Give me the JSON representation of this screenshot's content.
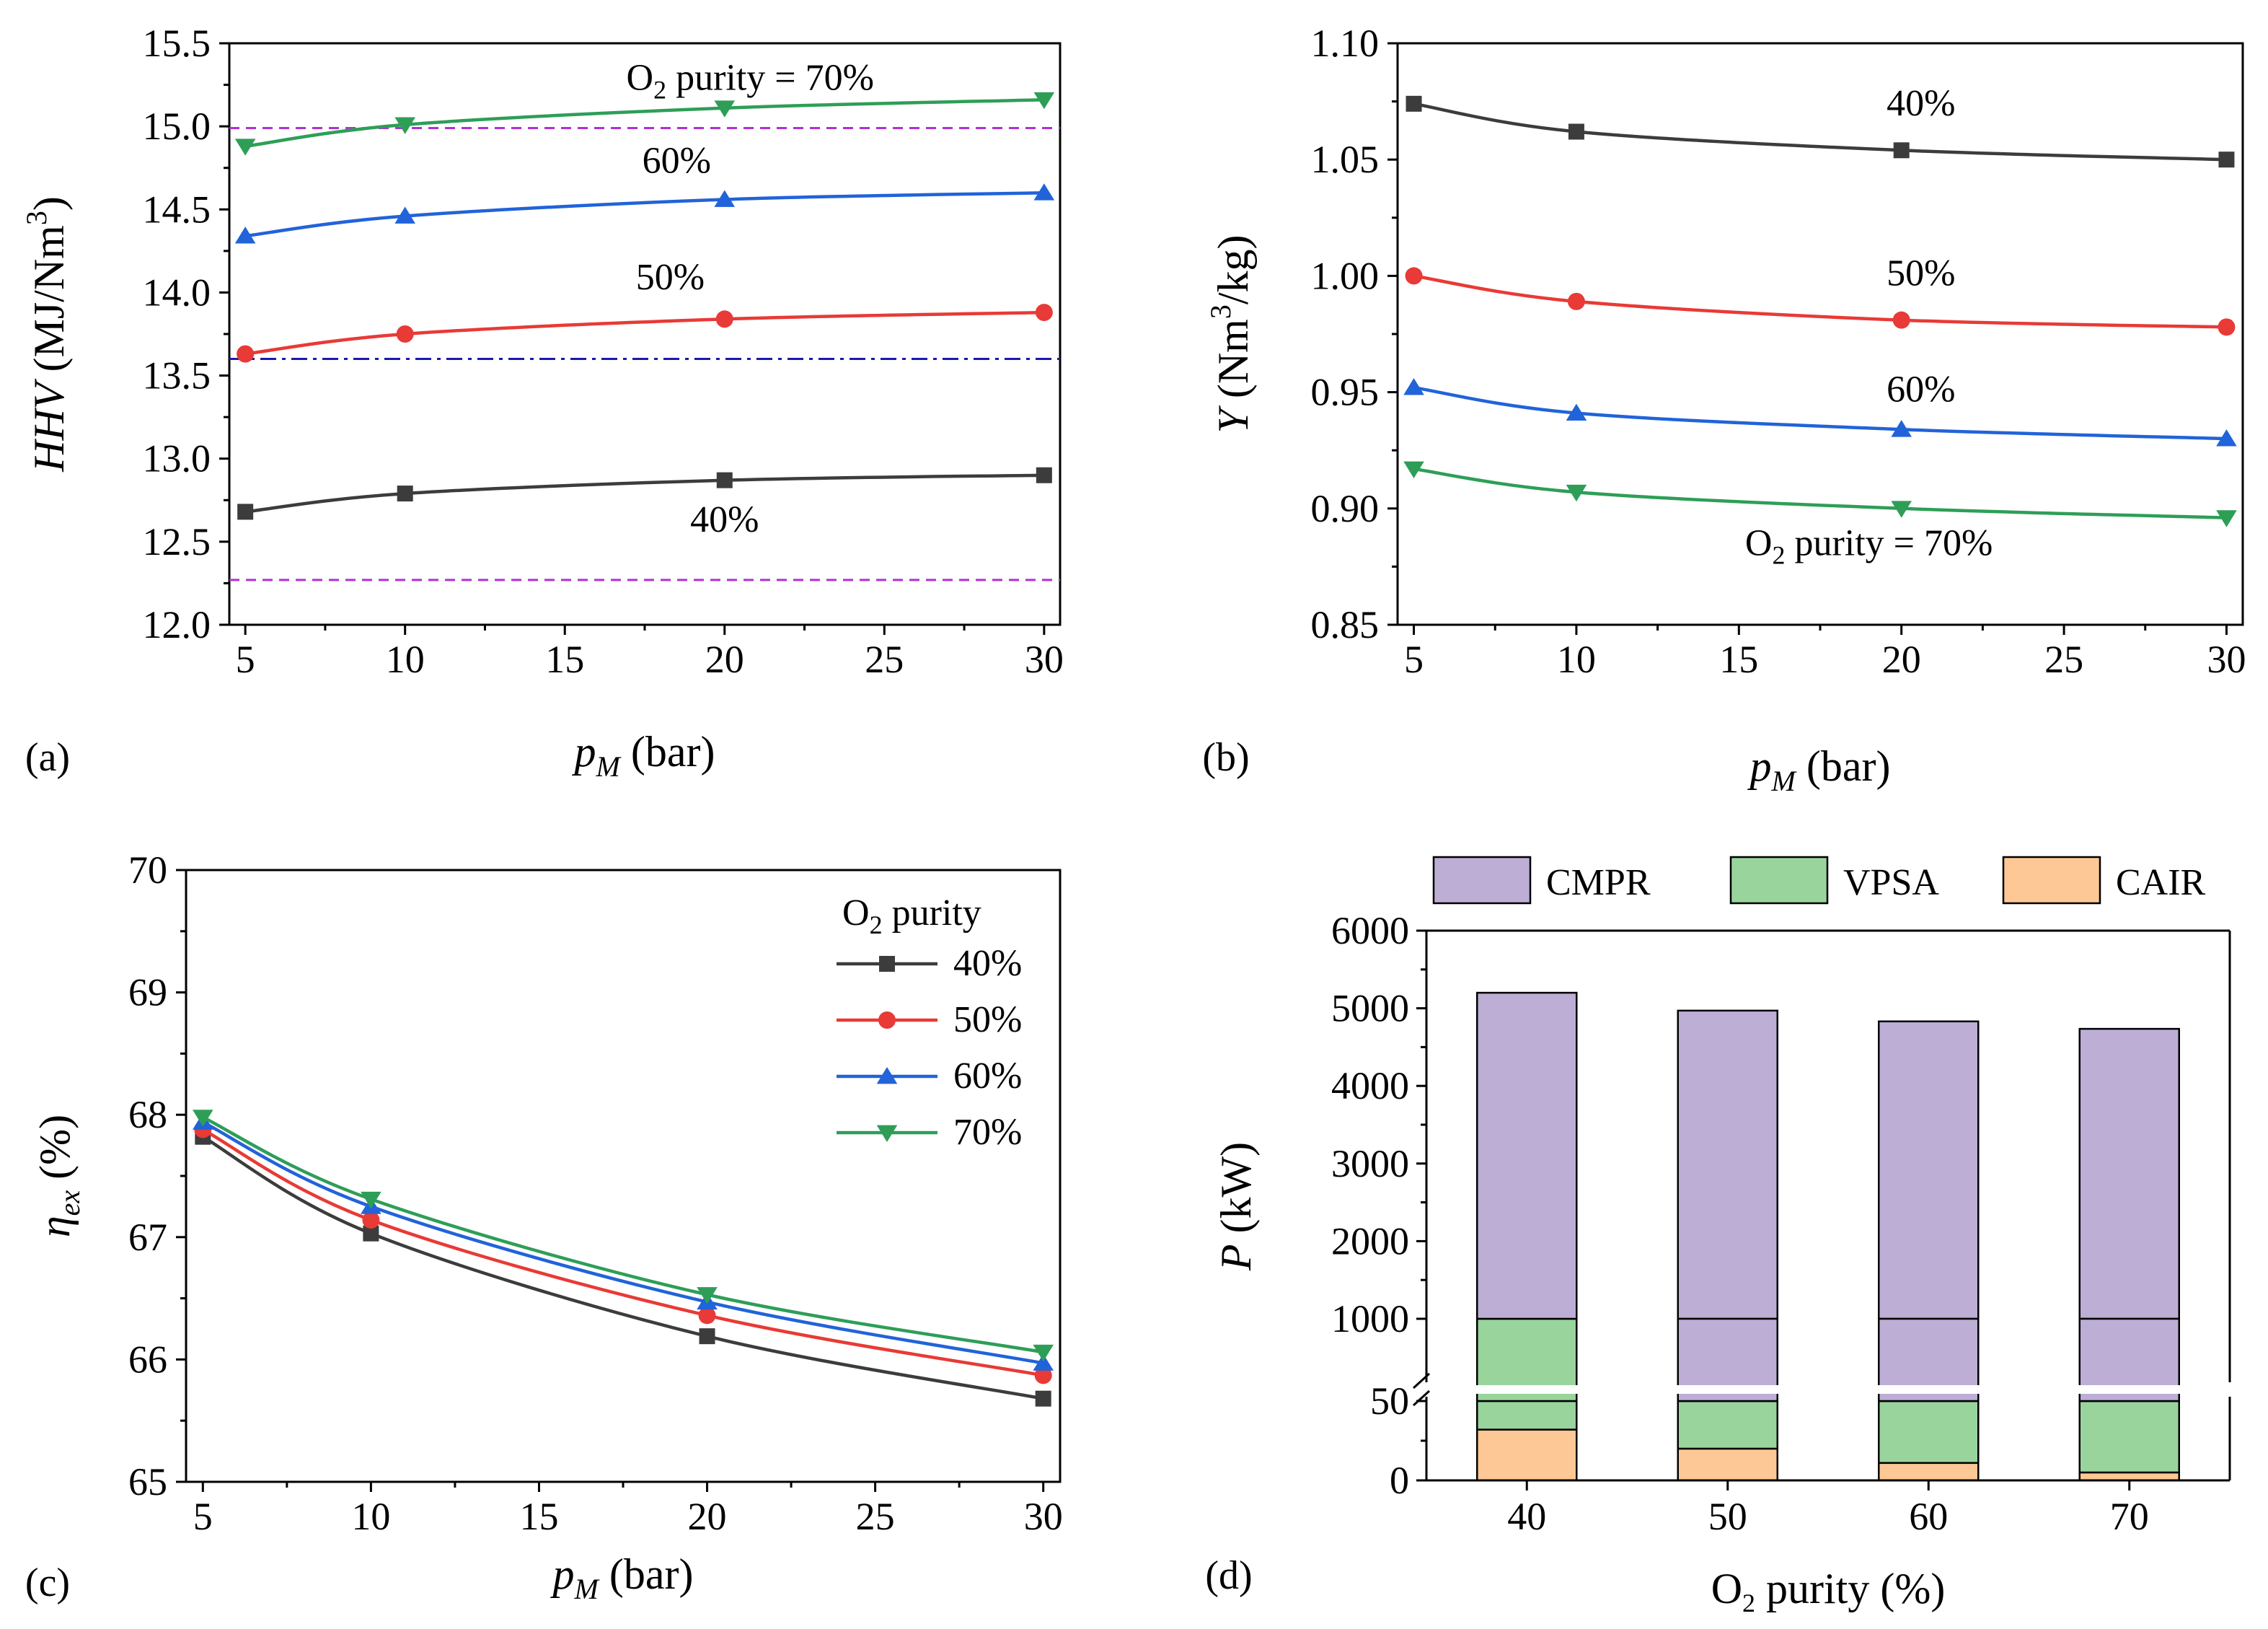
{
  "chart_data": [
    {
      "panel": "(a)",
      "type": "line",
      "xlabel": "p_M (bar)",
      "ylabel": "HHV (MJ/Nm3)",
      "xlim": [
        4.5,
        30.5
      ],
      "ylim": [
        12.0,
        15.5
      ],
      "xticks": [
        5,
        10,
        15,
        20,
        25,
        30
      ],
      "yticks": [
        12.0,
        12.5,
        13.0,
        13.5,
        14.0,
        14.5,
        15.0,
        15.5
      ],
      "x": [
        5,
        10,
        20,
        30
      ],
      "series": [
        {
          "name": "40%",
          "values": [
            12.68,
            12.79,
            12.87,
            12.9
          ],
          "color": "#3c3c3c",
          "marker": "square",
          "label": "40%",
          "label_at": [
            20.0,
            12.56
          ]
        },
        {
          "name": "50%",
          "values": [
            13.63,
            13.75,
            13.84,
            13.88
          ],
          "color": "#e83a36",
          "marker": "circle",
          "label": "50%",
          "label_at": [
            18.3,
            14.02
          ]
        },
        {
          "name": "60%",
          "values": [
            14.34,
            14.46,
            14.56,
            14.6
          ],
          "color": "#2163d9",
          "marker": "triangle-up",
          "label": "60%",
          "label_at": [
            18.5,
            14.72
          ]
        },
        {
          "name": "70%",
          "values": [
            14.88,
            15.01,
            15.11,
            15.16
          ],
          "color": "#2e9e57",
          "marker": "triangle-down",
          "label": "O2 purity = 70%",
          "label_at": [
            20.8,
            15.22
          ]
        }
      ],
      "reference_lines": [
        {
          "y": 14.99,
          "color": "#b030d8",
          "style": "dashed"
        },
        {
          "y": 13.6,
          "color": "#1a1ab0",
          "style": "dashdot"
        },
        {
          "y": 12.27,
          "color": "#b030d8",
          "style": "dashed"
        }
      ],
      "panel_label": "(a)"
    },
    {
      "panel": "(b)",
      "type": "line",
      "xlabel": "p_M (bar)",
      "ylabel": "Y (Nm3/kg)",
      "xlim": [
        4.5,
        30.5
      ],
      "ylim": [
        0.85,
        1.1
      ],
      "xticks": [
        5,
        10,
        15,
        20,
        25,
        30
      ],
      "yticks": [
        0.85,
        0.9,
        0.95,
        1.0,
        1.05,
        1.1
      ],
      "x": [
        5,
        10,
        20,
        30
      ],
      "series": [
        {
          "name": "40%",
          "values": [
            1.074,
            1.062,
            1.054,
            1.05
          ],
          "color": "#3c3c3c",
          "marker": "square",
          "label": "40%",
          "label_at": [
            20.6,
            1.069
          ]
        },
        {
          "name": "50%",
          "values": [
            1.0,
            0.989,
            0.981,
            0.978
          ],
          "color": "#e83a36",
          "marker": "circle",
          "label": "50%",
          "label_at": [
            20.6,
            0.996
          ]
        },
        {
          "name": "60%",
          "values": [
            0.952,
            0.941,
            0.934,
            0.93
          ],
          "color": "#2163d9",
          "marker": "triangle-up",
          "label": "60%",
          "label_at": [
            20.6,
            0.946
          ]
        },
        {
          "name": "70%",
          "values": [
            0.917,
            0.907,
            0.9,
            0.896
          ],
          "color": "#2e9e57",
          "marker": "triangle-down",
          "label": "O2 purity = 70%",
          "label_at": [
            19.0,
            0.88
          ]
        }
      ],
      "panel_label": "(b)"
    },
    {
      "panel": "(c)",
      "type": "line",
      "xlabel": "p_M (bar)",
      "ylabel": "η_ex (%)",
      "xlim": [
        4.5,
        30.5
      ],
      "ylim": [
        65,
        70
      ],
      "xticks": [
        5,
        10,
        15,
        20,
        25,
        30
      ],
      "yticks": [
        65,
        66,
        67,
        68,
        69,
        70
      ],
      "x": [
        5,
        10,
        20,
        30
      ],
      "series": [
        {
          "name": "40%",
          "values": [
            67.82,
            67.03,
            66.19,
            65.68
          ],
          "color": "#3c3c3c",
          "marker": "square"
        },
        {
          "name": "50%",
          "values": [
            67.88,
            67.14,
            66.36,
            65.87
          ],
          "color": "#e83a36",
          "marker": "circle"
        },
        {
          "name": "60%",
          "values": [
            67.94,
            67.25,
            66.47,
            65.97
          ],
          "color": "#2163d9",
          "marker": "triangle-up"
        },
        {
          "name": "70%",
          "values": [
            67.98,
            67.31,
            66.53,
            66.06
          ],
          "color": "#2e9e57",
          "marker": "triangle-down"
        }
      ],
      "legend_title": "O2 purity",
      "legend_position": "top-right",
      "panel_label": "(c)"
    },
    {
      "panel": "(d)",
      "type": "bar",
      "stacked": true,
      "broken_axis": true,
      "xlabel": "O2 purity (%)",
      "ylabel": "P (kW)",
      "categories": [
        "40",
        "50",
        "60",
        "70"
      ],
      "lower_ylim": [
        0,
        50
      ],
      "upper_ylim": [
        1000,
        6000
      ],
      "yticks_lower": [
        0,
        50
      ],
      "yticks_upper": [
        1000,
        2000,
        3000,
        4000,
        5000,
        6000
      ],
      "series": [
        {
          "name": "CAIR",
          "values": [
            32,
            20,
            11,
            5
          ],
          "color": "#fdc895"
        },
        {
          "name": "VPSA",
          "values": [
            968,
            960,
            955,
            955
          ],
          "color": "#99d49c"
        },
        {
          "name": "CMPR",
          "values": [
            4200,
            3990,
            3865,
            3775
          ],
          "color": "#bcaed5"
        }
      ],
      "totals": [
        5200,
        4970,
        4831,
        4735
      ],
      "legend_order": [
        "CMPR",
        "VPSA",
        "CAIR"
      ],
      "legend_position": "top",
      "panel_label": "(d)"
    }
  ]
}
